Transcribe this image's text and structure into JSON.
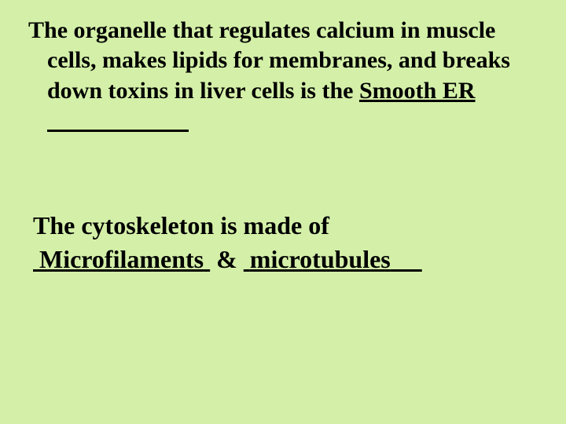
{
  "slide": {
    "background_color": "#d4f0a8",
    "text_color": "#000000",
    "font_family": "Times New Roman"
  },
  "question1": {
    "text_before": "The organelle that regulates calcium in muscle cells, makes lipids for membranes, and breaks down toxins in liver cells is the ",
    "answer": "Smooth ER",
    "filler": "                        ",
    "font_size": 30,
    "font_weight": "bold"
  },
  "question2": {
    "line1": "The cytoskeleton is made of",
    "answer1": "Microfilaments",
    "filler1a": " ",
    "filler1b": " ",
    "connector": " & ",
    "answer2": "microtubules",
    "filler2a": " ",
    "filler2b": "     ",
    "font_size": 32,
    "font_weight": "bold"
  }
}
